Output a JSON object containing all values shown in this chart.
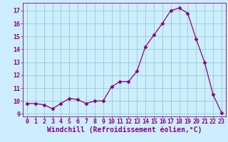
{
  "x": [
    0,
    1,
    2,
    3,
    4,
    5,
    6,
    7,
    8,
    9,
    10,
    11,
    12,
    13,
    14,
    15,
    16,
    17,
    18,
    19,
    20,
    21,
    22,
    23
  ],
  "y": [
    9.8,
    9.8,
    9.7,
    9.4,
    9.8,
    10.2,
    10.1,
    9.8,
    10.0,
    10.0,
    11.1,
    11.5,
    11.5,
    12.3,
    14.2,
    15.1,
    16.0,
    17.0,
    17.2,
    16.8,
    14.8,
    13.0,
    10.5,
    9.1
  ],
  "line_color": "#880088",
  "marker": "D",
  "marker_size": 2.5,
  "bg_color": "#cceeff",
  "grid_color": "#99cccc",
  "xlabel": "Windchill (Refroidissement éolien,°C)",
  "ylabel": "",
  "ylim": [
    8.8,
    17.6
  ],
  "xlim": [
    -0.5,
    23.5
  ],
  "yticks": [
    9,
    10,
    11,
    12,
    13,
    14,
    15,
    16,
    17
  ],
  "xticks": [
    0,
    1,
    2,
    3,
    4,
    5,
    6,
    7,
    8,
    9,
    10,
    11,
    12,
    13,
    14,
    15,
    16,
    17,
    18,
    19,
    20,
    21,
    22,
    23
  ],
  "tick_color": "#880088",
  "label_color": "#880088",
  "tick_fontsize": 6.0,
  "xlabel_fontsize": 7.0,
  "linewidth": 0.9
}
